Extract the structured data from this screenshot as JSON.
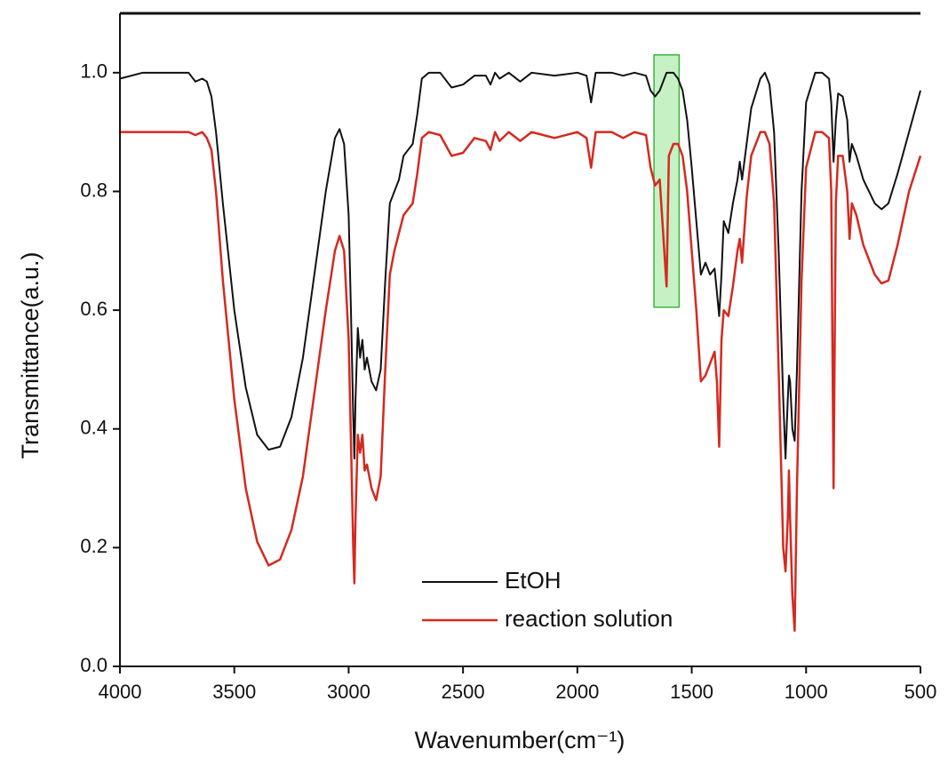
{
  "chart_data": {
    "type": "line",
    "xlabel": "Wavenumber(cm⁻¹)",
    "ylabel": "Transmittance(a.u.)",
    "xlim": [
      4000,
      500
    ],
    "ylim": [
      0,
      1.1
    ],
    "xticks": [
      4000,
      3500,
      3000,
      2500,
      2000,
      1500,
      1000,
      500
    ],
    "yticks": [
      {
        "value": 0,
        "label": "0.0"
      },
      0.2,
      0.4,
      0.6,
      0.8,
      {
        "value": 1,
        "label": "1.0"
      }
    ],
    "legend": "lower center",
    "highlight": {
      "xrange": [
        1665,
        1555
      ],
      "yrange": [
        0.605,
        1.03
      ],
      "color": "#7ee07e"
    },
    "x": [
      4000,
      3900,
      3800,
      3700,
      3670,
      3640,
      3620,
      3600,
      3580,
      3550,
      3500,
      3450,
      3400,
      3350,
      3300,
      3250,
      3200,
      3150,
      3100,
      3060,
      3040,
      3020,
      3000,
      2990,
      2980,
      2975,
      2970,
      2960,
      2950,
      2940,
      2930,
      2920,
      2900,
      2880,
      2860,
      2840,
      2820,
      2800,
      2780,
      2760,
      2740,
      2720,
      2700,
      2680,
      2650,
      2600,
      2550,
      2500,
      2450,
      2400,
      2380,
      2360,
      2340,
      2300,
      2250,
      2200,
      2100,
      2000,
      1960,
      1940,
      1920,
      1850,
      1800,
      1750,
      1700,
      1680,
      1660,
      1640,
      1620,
      1610,
      1600,
      1580,
      1560,
      1540,
      1520,
      1500,
      1480,
      1460,
      1440,
      1420,
      1400,
      1390,
      1380,
      1370,
      1360,
      1340,
      1320,
      1300,
      1290,
      1280,
      1260,
      1240,
      1200,
      1180,
      1160,
      1140,
      1120,
      1100,
      1090,
      1080,
      1075,
      1070,
      1060,
      1050,
      1040,
      1020,
      1000,
      960,
      930,
      900,
      890,
      880,
      870,
      860,
      840,
      820,
      810,
      800,
      780,
      750,
      700,
      670,
      640,
      600,
      550,
      500
    ],
    "series": [
      {
        "name": "EtOH",
        "color": "#111111",
        "width": 2,
        "values": [
          0.99,
          1.0,
          1.0,
          1.0,
          0.985,
          0.99,
          0.985,
          0.96,
          0.9,
          0.78,
          0.6,
          0.47,
          0.39,
          0.365,
          0.37,
          0.42,
          0.52,
          0.66,
          0.8,
          0.89,
          0.905,
          0.88,
          0.76,
          0.6,
          0.42,
          0.35,
          0.45,
          0.57,
          0.52,
          0.55,
          0.5,
          0.52,
          0.48,
          0.465,
          0.5,
          0.65,
          0.78,
          0.8,
          0.82,
          0.86,
          0.87,
          0.88,
          0.93,
          0.99,
          1.0,
          1.0,
          0.975,
          0.98,
          0.995,
          0.995,
          0.98,
          1.0,
          0.99,
          1.0,
          0.985,
          1.0,
          0.995,
          1.0,
          0.995,
          0.95,
          1.0,
          1.0,
          0.995,
          1.0,
          0.995,
          0.97,
          0.96,
          0.97,
          0.99,
          1.0,
          1.0,
          1.0,
          0.99,
          0.97,
          0.92,
          0.84,
          0.75,
          0.66,
          0.68,
          0.66,
          0.67,
          0.63,
          0.59,
          0.66,
          0.75,
          0.73,
          0.78,
          0.82,
          0.85,
          0.82,
          0.88,
          0.94,
          0.99,
          1.0,
          0.98,
          0.9,
          0.7,
          0.45,
          0.35,
          0.45,
          0.49,
          0.48,
          0.4,
          0.38,
          0.5,
          0.8,
          0.95,
          1.0,
          1.0,
          0.99,
          0.95,
          0.85,
          0.92,
          0.965,
          0.96,
          0.92,
          0.85,
          0.88,
          0.86,
          0.82,
          0.78,
          0.77,
          0.78,
          0.83,
          0.9,
          0.97
        ]
      },
      {
        "name": "reaction solution",
        "color": "#d42a20",
        "width": 2.5,
        "values": [
          0.9,
          0.9,
          0.9,
          0.9,
          0.895,
          0.9,
          0.89,
          0.87,
          0.8,
          0.65,
          0.45,
          0.3,
          0.21,
          0.17,
          0.18,
          0.23,
          0.32,
          0.46,
          0.6,
          0.7,
          0.725,
          0.7,
          0.55,
          0.38,
          0.2,
          0.14,
          0.25,
          0.39,
          0.36,
          0.39,
          0.33,
          0.34,
          0.3,
          0.28,
          0.32,
          0.5,
          0.66,
          0.7,
          0.73,
          0.76,
          0.77,
          0.78,
          0.83,
          0.89,
          0.9,
          0.895,
          0.86,
          0.865,
          0.89,
          0.885,
          0.87,
          0.9,
          0.885,
          0.9,
          0.885,
          0.9,
          0.89,
          0.9,
          0.89,
          0.84,
          0.9,
          0.9,
          0.89,
          0.9,
          0.895,
          0.84,
          0.81,
          0.82,
          0.7,
          0.64,
          0.86,
          0.88,
          0.88,
          0.86,
          0.8,
          0.7,
          0.6,
          0.48,
          0.49,
          0.51,
          0.53,
          0.48,
          0.37,
          0.55,
          0.6,
          0.59,
          0.64,
          0.7,
          0.72,
          0.68,
          0.79,
          0.86,
          0.9,
          0.9,
          0.88,
          0.78,
          0.5,
          0.2,
          0.16,
          0.25,
          0.33,
          0.25,
          0.12,
          0.06,
          0.3,
          0.65,
          0.84,
          0.9,
          0.9,
          0.89,
          0.8,
          0.3,
          0.78,
          0.86,
          0.86,
          0.8,
          0.72,
          0.78,
          0.76,
          0.71,
          0.66,
          0.645,
          0.65,
          0.71,
          0.8,
          0.86
        ]
      }
    ]
  }
}
